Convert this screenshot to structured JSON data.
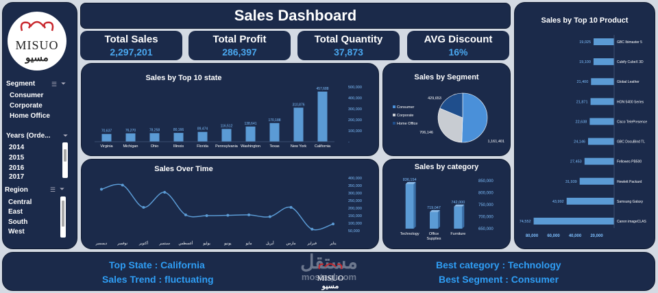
{
  "title": "Sales Dashboard",
  "logo": {
    "en": "MISUO",
    "ar": "مسيو"
  },
  "kpis": [
    {
      "label": "Total Sales",
      "value": "2,297,201"
    },
    {
      "label": "Total Profit",
      "value": "286,397"
    },
    {
      "label": "Total Quantity",
      "value": "37,873"
    },
    {
      "label": "AVG Discount",
      "value": "16%"
    }
  ],
  "slicers": {
    "segment": {
      "label": "Segment",
      "items": [
        "Consumer",
        "Corporate",
        "Home Office"
      ]
    },
    "years": {
      "label": "Years (Orde...",
      "items": [
        "2014",
        "2015",
        "2016",
        "2017"
      ]
    },
    "region": {
      "label": "Region",
      "items": [
        "Central",
        "East",
        "South",
        "West"
      ]
    }
  },
  "colors": {
    "panel": "#1b2a4a",
    "bar": "#5b9bd5",
    "accent": "#2f9ef5",
    "bg": "#d4dae3"
  },
  "chart_data": [
    {
      "type": "bar",
      "title": "Sales by Top 10 state",
      "categories": [
        "Virginia",
        "Michigan",
        "Ohio",
        "Illinois",
        "Florida",
        "Pennsylvania",
        "Washington",
        "Texas",
        "New York",
        "California"
      ],
      "values": [
        70637,
        76270,
        78258,
        80166,
        89474,
        116512,
        138641,
        170188,
        310876,
        457688
      ],
      "data_labels": [
        "70,637",
        "76,270",
        "78,258",
        "80,166",
        "89,474",
        "116,512",
        "138,641",
        "170,188",
        "310,876",
        "457,688"
      ],
      "yticks": [
        "500,000",
        "400,000",
        "300,000",
        "200,000",
        "100,000",
        "-"
      ],
      "ylim": [
        0,
        500000
      ]
    },
    {
      "type": "pie",
      "title": "Sales by Segment",
      "categories": [
        "Consumer",
        "Corporate",
        "Home Office"
      ],
      "values": [
        1161401,
        706146,
        429653
      ],
      "data_labels": [
        "1,161,401",
        "706,146",
        "429,653"
      ],
      "colors": [
        "#4a90d9",
        "#c8ccd2",
        "#1f4e8c"
      ]
    },
    {
      "type": "line",
      "title": "Sales Over Time",
      "categories": [
        "ديسمبر",
        "نوفمبر",
        "أكتوبر",
        "سبتمبر",
        "أغسطس",
        "يوليو",
        "يونيو",
        "مايو",
        "أبريل",
        "مارس",
        "فبراير",
        "يناير"
      ],
      "values": [
        325000,
        353000,
        205000,
        305000,
        155000,
        150000,
        152000,
        155000,
        143000,
        205000,
        60000,
        95000
      ],
      "yticks": [
        "400,000",
        "350,000",
        "300,000",
        "250,000",
        "200,000",
        "150,000",
        "100,000",
        "50,000"
      ],
      "ylim": [
        50000,
        400000
      ]
    },
    {
      "type": "bar",
      "title": "Sales by category",
      "categories": [
        "Technology",
        "Office Supplies",
        "Furniture"
      ],
      "values": [
        836154,
        719047,
        742000
      ],
      "data_labels": [
        "836,154",
        "719,047",
        "742,000"
      ],
      "yticks": [
        "850,000",
        "800,000",
        "750,000",
        "700,000",
        "650,000"
      ],
      "ylim": [
        650000,
        850000
      ]
    },
    {
      "type": "bar",
      "title": "Sales by Top 10 Product",
      "categories": [
        "GBC Ibimaster 5",
        "Cubify CubeX 3D",
        "Global Leather",
        "HON 5400 Series",
        "Cisco TelePresence",
        "GBC DocuBind TL",
        "Fellowes PB500",
        "Hewlett Packard",
        "Samsung Galaxy",
        "Canon imageCLAS"
      ],
      "values": [
        19025,
        19100,
        21400,
        21871,
        22638,
        24146,
        27453,
        31939,
        43992,
        74552
      ],
      "data_labels": [
        "19,025",
        "19,100",
        "21,400",
        "21,871",
        "22,638",
        "24,146",
        "27,453",
        "31,939",
        "43,992",
        "74,552"
      ],
      "xticks": [
        "80,000",
        "60,000",
        "40,000",
        "20,000"
      ],
      "xlim": [
        0,
        80000
      ]
    }
  ],
  "footer": {
    "top_state": "Top State : California",
    "trend": "Sales Trend : fluctuating",
    "best_category": "Best category : Technology",
    "best_segment": "Best Segment : Consumer",
    "watermark": "مستقل",
    "watermark_sub": "mostaql.com"
  }
}
